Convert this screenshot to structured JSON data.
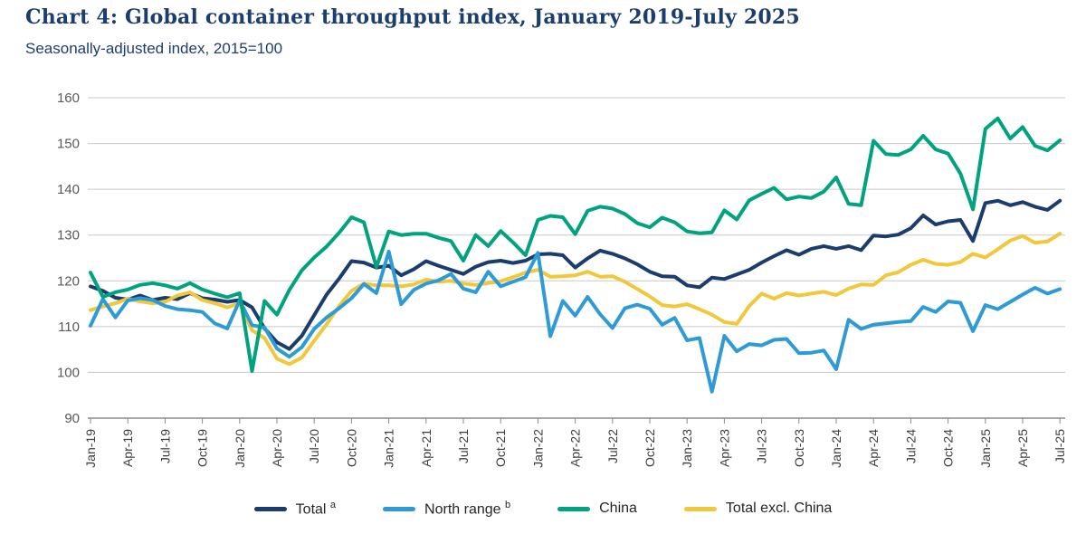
{
  "header": {
    "title": "Chart 4: Global container throughput index, January 2019-July 2025",
    "subtitle": "Seasonally-adjusted index, 2015=100"
  },
  "chart_data": {
    "type": "line",
    "title": "Chart 4: Global container throughput index, January 2019-July 2025",
    "subtitle": "Seasonally-adjusted index, 2015=100",
    "xlabel": "",
    "ylabel": "Seasonally-adjusted index, 2015=100",
    "ylim": [
      90,
      160
    ],
    "yticks": [
      90,
      100,
      110,
      120,
      130,
      140,
      150,
      160
    ],
    "grid": "horizontal",
    "legend_position": "bottom",
    "x_frequency": "monthly",
    "x_range": [
      "Jan-19",
      "Jul-25"
    ],
    "x_tick_labels": [
      "Jan-19",
      "Apr-19",
      "Jul-19",
      "Oct-19",
      "Jan-20",
      "Apr-20",
      "Jul-20",
      "Oct-20",
      "Jan-21",
      "Apr-21",
      "Jul-21",
      "Oct-21",
      "Jan-22",
      "Apr-22",
      "Jul-22",
      "Oct-22",
      "Jan-23",
      "Apr-23",
      "Jul-23",
      "Oct-23",
      "Jan-24",
      "Apr-24",
      "Jul-24",
      "Oct-24",
      "Jan-25",
      "Apr-25",
      "Jul-25"
    ],
    "months_per_tick": 3,
    "series": [
      {
        "name": "Total",
        "superscript": "a",
        "color": "#1b3c6d",
        "values": [
          118.8,
          117.8,
          116.3,
          115.9,
          116.8,
          115.8,
          116.3,
          116.0,
          117.3,
          116.2,
          115.9,
          115.4,
          115.8,
          114.2,
          109.6,
          106.6,
          105.1,
          108.0,
          112.5,
          117.0,
          120.5,
          124.3,
          124.0,
          122.9,
          123.3,
          121.2,
          122.5,
          124.3,
          123.3,
          122.4,
          121.5,
          123.1,
          124.1,
          124.4,
          123.9,
          124.4,
          125.8,
          125.9,
          125.6,
          122.9,
          124.9,
          126.6,
          125.9,
          124.9,
          123.6,
          122.0,
          121.0,
          120.9,
          119.0,
          118.6,
          120.7,
          120.4,
          121.4,
          122.4,
          124.0,
          125.4,
          126.7,
          125.7,
          127.0,
          127.6,
          127.0,
          127.6,
          126.7,
          129.9,
          129.7,
          130.1,
          131.5,
          134.3,
          132.3,
          133.0,
          133.3,
          128.7,
          137.0,
          137.5,
          136.5,
          137.2,
          136.2,
          135.5,
          137.5
        ]
      },
      {
        "name": "North range",
        "superscript": "b",
        "color": "#2e9bd6",
        "values": [
          110.2,
          116.0,
          112.0,
          115.7,
          116.2,
          115.8,
          114.5,
          113.8,
          113.6,
          113.2,
          110.7,
          109.6,
          115.7,
          110.3,
          109.8,
          105.2,
          103.4,
          105.5,
          109.5,
          112.0,
          114.0,
          116.2,
          119.3,
          117.3,
          126.4,
          114.9,
          118.0,
          119.4,
          120.1,
          121.5,
          118.3,
          117.5,
          122.0,
          118.8,
          119.8,
          120.8,
          126.1,
          107.9,
          115.6,
          112.4,
          116.5,
          112.7,
          109.7,
          114.0,
          114.8,
          113.9,
          110.4,
          111.9,
          107.0,
          107.5,
          95.8,
          108.0,
          104.6,
          106.2,
          105.9,
          107.1,
          107.3,
          104.2,
          104.3,
          104.8,
          100.7,
          111.5,
          109.5,
          110.4,
          110.7,
          111.0,
          111.2,
          114.3,
          113.2,
          115.5,
          115.2,
          109.0,
          114.7,
          113.8,
          115.4,
          117.0,
          118.5,
          117.2,
          118.2
        ]
      },
      {
        "name": "China",
        "superscript": "",
        "color": "#00a37d",
        "values": [
          121.8,
          116.5,
          117.5,
          118.1,
          119.1,
          119.5,
          119.0,
          118.3,
          119.5,
          118.1,
          117.2,
          116.4,
          117.3,
          100.3,
          115.6,
          112.6,
          118.0,
          122.3,
          125.1,
          127.5,
          130.5,
          133.9,
          132.8,
          123.0,
          130.8,
          130.0,
          130.3,
          130.3,
          129.4,
          128.7,
          124.4,
          130.0,
          127.6,
          130.9,
          128.4,
          125.6,
          133.3,
          134.2,
          133.9,
          130.2,
          135.3,
          136.2,
          135.8,
          134.6,
          132.6,
          131.7,
          133.8,
          132.8,
          130.8,
          130.4,
          130.6,
          135.4,
          133.4,
          137.6,
          139.0,
          140.3,
          137.8,
          138.4,
          138.1,
          139.5,
          142.6,
          136.8,
          136.5,
          150.6,
          147.7,
          147.5,
          148.7,
          151.7,
          148.7,
          147.8,
          143.4,
          135.6,
          153.2,
          155.5,
          151.1,
          153.6,
          149.5,
          148.5,
          150.7
        ]
      },
      {
        "name": "Total excl. China",
        "superscript": "",
        "color": "#f1c73b",
        "values": [
          113.6,
          114.4,
          115.1,
          116.1,
          115.5,
          115.1,
          115.4,
          116.8,
          117.5,
          115.8,
          115.1,
          114.2,
          115.1,
          109.2,
          107.5,
          103.0,
          101.8,
          103.2,
          106.9,
          110.5,
          114.5,
          117.8,
          119.4,
          119.0,
          119.0,
          118.8,
          119.2,
          120.3,
          119.8,
          120.0,
          119.4,
          119.1,
          119.5,
          119.9,
          120.8,
          121.8,
          122.4,
          120.9,
          121.0,
          121.2,
          122.0,
          120.9,
          121.0,
          119.8,
          118.2,
          116.6,
          114.7,
          114.4,
          114.9,
          113.8,
          112.6,
          111.0,
          110.6,
          114.5,
          117.2,
          116.1,
          117.3,
          116.8,
          117.2,
          117.6,
          116.9,
          118.3,
          119.2,
          119.1,
          121.2,
          121.9,
          123.5,
          124.6,
          123.7,
          123.5,
          124.1,
          125.9,
          125.1,
          126.9,
          128.8,
          129.8,
          128.3,
          128.6,
          130.3
        ]
      }
    ],
    "draw_order": [
      0,
      3,
      1,
      2
    ],
    "style": {
      "gridline_color": "#c9c9c9",
      "axis_line_color": "#8a8a8a",
      "y_label_color": "#595959",
      "x_label_color": "#3d3d3d",
      "line_width": 4
    }
  }
}
